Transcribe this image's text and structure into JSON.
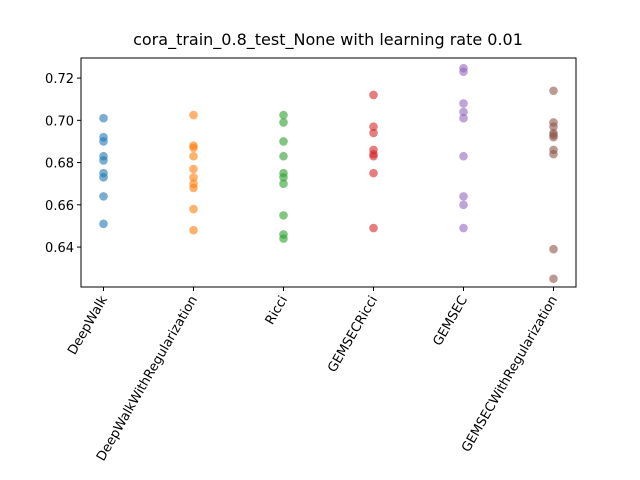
{
  "chart_data": {
    "type": "scatter",
    "title": "cora_train_0.8_test_None with learning rate 0.01",
    "categories": [
      "DeepWalk",
      "DeepWalkWithRegularization",
      "Ricci",
      "GEMSECRicci",
      "GEMSEC",
      "GEMSECWithRegularization"
    ],
    "colors": [
      "#1f77b4",
      "#ff7f0e",
      "#2ca02c",
      "#d62728",
      "#9467bd",
      "#8c564b"
    ],
    "values": [
      [
        0.701,
        0.692,
        0.69,
        0.683,
        0.681,
        0.675,
        0.673,
        0.664,
        0.651
      ],
      [
        0.7025,
        0.688,
        0.687,
        0.683,
        0.677,
        0.673,
        0.67,
        0.668,
        0.658,
        0.648
      ],
      [
        0.7025,
        0.699,
        0.69,
        0.683,
        0.675,
        0.673,
        0.67,
        0.655,
        0.646,
        0.644
      ],
      [
        0.712,
        0.697,
        0.694,
        0.686,
        0.684,
        0.683,
        0.675,
        0.649
      ],
      [
        0.7247,
        0.723,
        0.708,
        0.704,
        0.701,
        0.683,
        0.664,
        0.66,
        0.649
      ],
      [
        0.714,
        0.699,
        0.697,
        0.694,
        0.693,
        0.692,
        0.686,
        0.684,
        0.639,
        0.625
      ]
    ],
    "ylim": [
      0.6211,
      0.7295
    ],
    "yticks": [
      0.64,
      0.66,
      0.68,
      {
        "value": 0.7,
        "label": "0.70"
      },
      0.72
    ]
  }
}
